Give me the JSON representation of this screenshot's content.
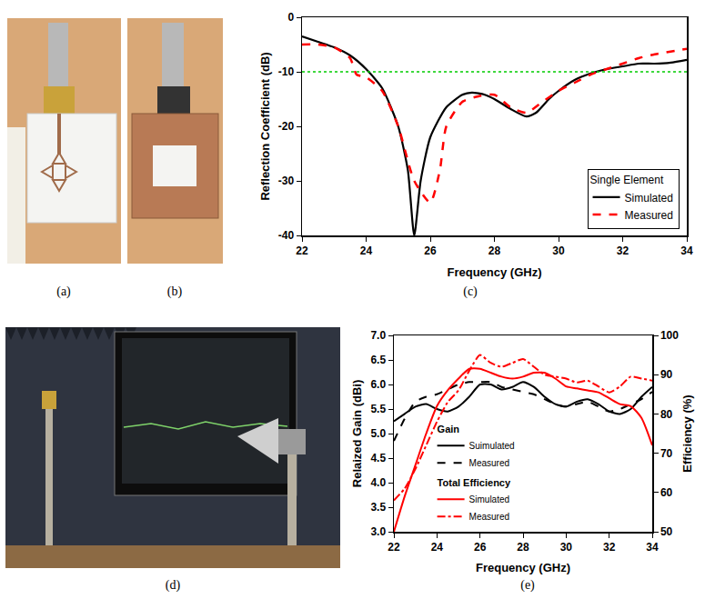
{
  "panel_labels": [
    "(a)",
    "(b)",
    "(c)",
    "(d)",
    "(e)"
  ],
  "chart_data": [
    {
      "type": "line",
      "x_label": "Frequency (GHz)",
      "y_label": "Reflection Coefficient (dB)",
      "xlim": [
        22,
        34
      ],
      "xticks": [
        22,
        24,
        26,
        28,
        30,
        32,
        34
      ],
      "ylim": [
        -40,
        0
      ],
      "yticks": [
        -40,
        -30,
        -20,
        -10,
        0
      ],
      "grid": false,
      "legend": "lower right",
      "legend_title": "Single Element",
      "reference_line": -10,
      "series": [
        {
          "name": "Simulated",
          "color": "#000000",
          "line_style": "solid",
          "x": [
            22,
            22.5,
            23,
            23.5,
            24,
            24.5,
            25,
            25.3,
            25.5,
            25.7,
            26,
            26.5,
            27,
            27.3,
            27.7,
            28,
            28.5,
            29,
            29.3,
            29.7,
            30,
            30.5,
            31,
            31.5,
            32,
            32.5,
            33,
            33.5,
            34
          ],
          "values": [
            -3.5,
            -4.5,
            -5.5,
            -7,
            -9.5,
            -13,
            -20,
            -28,
            -40,
            -30,
            -22,
            -16.5,
            -14.2,
            -13.8,
            -14.2,
            -15,
            -16.8,
            -18.2,
            -17.5,
            -15,
            -13.5,
            -11.5,
            -10.3,
            -9.5,
            -9,
            -8.5,
            -8.5,
            -8.3,
            -7.8
          ]
        },
        {
          "name": "Measured",
          "color": "#ff0000",
          "line_style": "dash",
          "x": [
            22,
            22.5,
            23,
            23.5,
            23.7,
            24,
            24.5,
            25,
            25.5,
            26,
            26.3,
            26.5,
            27,
            27.5,
            28,
            28.5,
            29,
            29.5,
            30,
            30.5,
            31,
            31.5,
            32,
            32.5,
            33,
            34
          ],
          "values": [
            -5,
            -5,
            -5.5,
            -7.5,
            -10.5,
            -11,
            -13.5,
            -20,
            -30,
            -34,
            -28,
            -20,
            -15.5,
            -14.5,
            -14.2,
            -16.5,
            -17.5,
            -15.5,
            -13.5,
            -12,
            -10.5,
            -9.5,
            -8.5,
            -7.5,
            -6.8,
            -5.8
          ]
        }
      ]
    },
    {
      "type": "line",
      "x_label": "Frequency (GHz)",
      "y_label": "Relaized Gain (dBi)",
      "y2_label": "Efficiency (%)",
      "xlim": [
        22,
        34
      ],
      "xticks": [
        22,
        24,
        26,
        28,
        30,
        32,
        34
      ],
      "ylim": [
        3,
        7
      ],
      "yticks": [
        {
          "value": 3,
          "label": "3.0"
        },
        3.5,
        {
          "value": 4,
          "label": "4.0"
        },
        4.5,
        {
          "value": 5,
          "label": "5.0"
        },
        5.5,
        {
          "value": 6,
          "label": "6.0"
        },
        6.5,
        {
          "value": 7,
          "label": "7.0"
        }
      ],
      "y2lim": [
        50,
        100
      ],
      "y2ticks": [
        50,
        60,
        70,
        80,
        90,
        100
      ],
      "grid": false,
      "legend": "lower left",
      "series": [
        {
          "name": "Suimulated",
          "group": "Gain",
          "color": "#000000",
          "line_style": "solid",
          "x": [
            22,
            22.5,
            23,
            23.5,
            24,
            24.5,
            25,
            25.5,
            26,
            26.5,
            27,
            27.5,
            28,
            28.5,
            29,
            29.5,
            30,
            30.5,
            31,
            31.5,
            32,
            32.5,
            33,
            33.5,
            34
          ],
          "values": [
            5.25,
            5.4,
            5.55,
            5.6,
            5.5,
            5.45,
            5.55,
            5.75,
            6.0,
            6.0,
            5.9,
            5.95,
            6.05,
            5.95,
            5.75,
            5.6,
            5.55,
            5.65,
            5.7,
            5.6,
            5.45,
            5.4,
            5.5,
            5.75,
            5.95
          ]
        },
        {
          "name": "Measured",
          "group": "Gain",
          "color": "#000000",
          "line_style": "dash",
          "x": [
            22,
            22.5,
            23,
            23.5,
            24,
            24.5,
            25,
            25.5,
            26,
            26.5,
            27,
            27.5,
            28,
            28.5,
            29,
            29.5,
            30,
            30.5,
            31,
            31.5,
            32,
            32.5,
            33,
            33.5,
            34
          ],
          "values": [
            4.85,
            5.3,
            5.65,
            5.75,
            5.8,
            5.9,
            6.0,
            6.05,
            6.05,
            6.05,
            5.95,
            5.9,
            5.85,
            5.8,
            5.7,
            5.6,
            5.55,
            5.6,
            5.65,
            5.55,
            5.45,
            5.5,
            5.6,
            5.7,
            5.85
          ]
        },
        {
          "name": "Simulated",
          "group": "Total Efficiency",
          "axis": "y2",
          "color": "#ff0000",
          "line_style": "solid",
          "x": [
            22,
            22.5,
            23,
            23.5,
            24,
            24.5,
            25,
            25.5,
            26,
            26.5,
            27,
            27.5,
            28,
            28.5,
            29,
            29.5,
            30,
            30.5,
            31,
            31.5,
            32,
            32.5,
            33,
            33.5,
            34
          ],
          "values": [
            50,
            59,
            67,
            75,
            82,
            86,
            89,
            91.5,
            91.5,
            90.5,
            89.5,
            89,
            89.5,
            90.5,
            90.5,
            89,
            87,
            86.5,
            86,
            85.5,
            84,
            82.5,
            82,
            79,
            72
          ]
        },
        {
          "name": "Measured",
          "group": "Total Efficiency",
          "axis": "y2",
          "color": "#ff0000",
          "line_style": "dashdot",
          "x": [
            22,
            22.5,
            23,
            23.5,
            24,
            24.5,
            25,
            25.5,
            26,
            26.5,
            27,
            27.5,
            28,
            28.5,
            29,
            29.5,
            30,
            30.5,
            31,
            31.5,
            32,
            32.5,
            33,
            33.5,
            34
          ],
          "values": [
            58,
            61,
            66,
            72,
            78,
            83,
            86,
            91,
            95,
            93,
            92,
            93,
            94,
            92,
            90,
            89.5,
            89,
            88,
            88.5,
            87,
            85.5,
            87,
            89.5,
            89,
            88.5
          ]
        }
      ]
    }
  ]
}
